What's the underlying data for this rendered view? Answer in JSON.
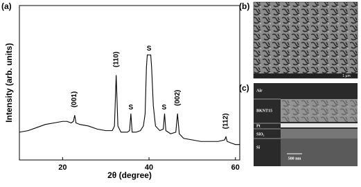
{
  "chart_data": {
    "type": "line",
    "xlabel": "2θ (degree)",
    "ylabel": "Intensity (arb. units)",
    "xlim": [
      10,
      61
    ],
    "ylim": [
      0,
      100
    ],
    "xticks": [
      20,
      40,
      60
    ],
    "color": "#000000",
    "x": [
      10,
      12,
      14,
      16,
      18,
      20,
      21,
      22,
      22.5,
      22.8,
      23.1,
      24,
      26,
      28,
      30,
      31.5,
      32,
      32.4,
      32.8,
      33.5,
      35,
      35.5,
      35.8,
      36.1,
      37,
      38,
      38.7,
      39.1,
      39.4,
      39.6,
      40.4,
      40.6,
      41,
      41.5,
      42.5,
      43.3,
      43.6,
      43.9,
      45,
      46.2,
      46.6,
      47,
      48,
      50,
      52,
      54,
      56,
      57.5,
      57.8,
      58.1,
      59,
      60,
      61
    ],
    "values": [
      18,
      19,
      21,
      23,
      24,
      25,
      25,
      24,
      25,
      29,
      24,
      23,
      22,
      20,
      19,
      19,
      22,
      55,
      22,
      18,
      18,
      19,
      30,
      18,
      18,
      19,
      22,
      30,
      60,
      68,
      68,
      60,
      35,
      22,
      19,
      20,
      30,
      19,
      17,
      18,
      30,
      17,
      14,
      13,
      12,
      12,
      12,
      13,
      15,
      12,
      11,
      10,
      10
    ],
    "annotations": [
      {
        "text": "(001)",
        "x": 22.7,
        "y": 34,
        "rotate": true
      },
      {
        "text": "(110)",
        "x": 32.4,
        "y": 60,
        "rotate": true
      },
      {
        "text": "S",
        "x": 35.8,
        "y": 34,
        "rotate": false
      },
      {
        "text": "S",
        "x": 40.0,
        "y": 72,
        "rotate": false
      },
      {
        "text": "S",
        "x": 43.5,
        "y": 34,
        "rotate": false
      },
      {
        "text": "(002)",
        "x": 46.6,
        "y": 35,
        "rotate": true
      },
      {
        "text": "(112)",
        "x": 57.8,
        "y": 20,
        "rotate": true
      }
    ]
  },
  "panels": {
    "a": "(a)",
    "b": "(b)",
    "c": "(c)"
  },
  "sem_top": {
    "scale_bar": "1 µm"
  },
  "sem_cross_section": {
    "layers": [
      "Air",
      "BKNT15",
      "Pt",
      "SiO₂",
      "Si"
    ],
    "scale_bar": "500 nm"
  }
}
